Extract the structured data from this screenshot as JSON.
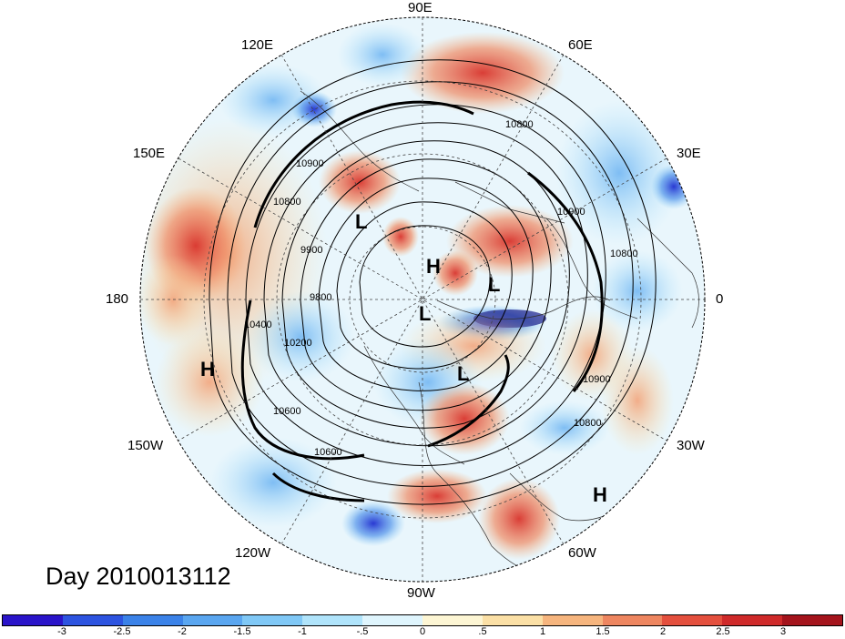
{
  "title": "Day 2010013112",
  "longitude_labels": [
    {
      "id": "lon-90e",
      "text": "90E"
    },
    {
      "id": "lon-60e",
      "text": "60E"
    },
    {
      "id": "lon-30e",
      "text": "30E"
    },
    {
      "id": "lon-0",
      "text": "0"
    },
    {
      "id": "lon-30w",
      "text": "30W"
    },
    {
      "id": "lon-60w",
      "text": "60W"
    },
    {
      "id": "lon-90w",
      "text": "90W"
    },
    {
      "id": "lon-120w",
      "text": "120W"
    },
    {
      "id": "lon-150w",
      "text": "150W"
    },
    {
      "id": "lon-180",
      "text": "180"
    },
    {
      "id": "lon-150e",
      "text": "150E"
    },
    {
      "id": "lon-120e",
      "text": "120E"
    }
  ],
  "pressure_centers": [
    "H",
    "H",
    "H",
    "L",
    "L",
    "L",
    "L"
  ],
  "contour_labels": [
    "10900",
    "10800",
    "10900",
    "10800",
    "10900",
    "10800",
    "9900",
    "9800",
    "10200",
    "10600",
    "10600",
    "10800",
    "10400"
  ],
  "colorbar": {
    "ticks": [
      "-3",
      "-2.5",
      "-2",
      "-1.5",
      "-1",
      "-.5",
      "0",
      ".5",
      "1",
      "1.5",
      "2",
      "2.5",
      "3"
    ],
    "colors": [
      "#2a14c9",
      "#2d54e0",
      "#3b82e8",
      "#5aa6f0",
      "#80c8f6",
      "#b0e4fb",
      "#dff5fd",
      "#fdf6d4",
      "#fbe0a6",
      "#f6b57e",
      "#ee8660",
      "#e4503e",
      "#cf2a2a",
      "#a4141c"
    ]
  }
}
